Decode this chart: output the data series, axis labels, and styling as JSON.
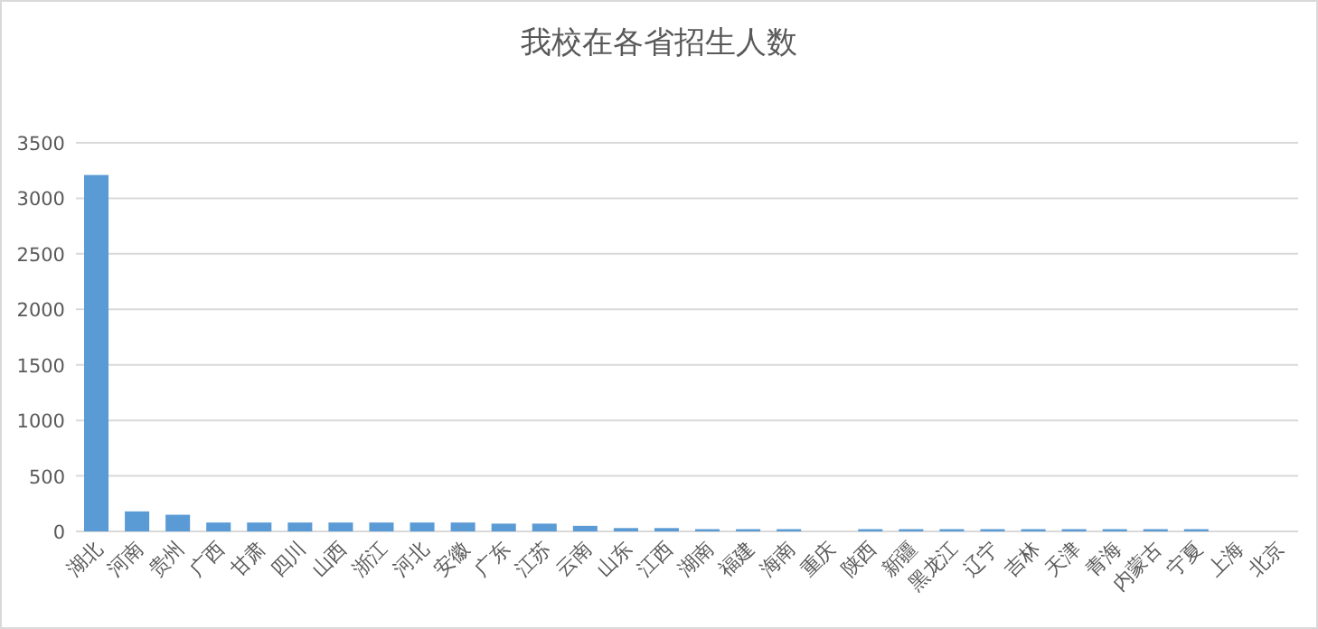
{
  "chart_data": {
    "type": "bar",
    "title": "我校在各省招生人数",
    "categories": [
      "湖北",
      "河南",
      "贵州",
      "广西",
      "甘肃",
      "四川",
      "山西",
      "浙江",
      "河北",
      "安徽",
      "广东",
      "江苏",
      "云南",
      "山东",
      "江西",
      "湖南",
      "福建",
      "海南",
      "重庆",
      "陕西",
      "新疆",
      "黑龙江",
      "辽宁",
      "吉林",
      "天津",
      "青海",
      "内蒙古",
      "宁夏",
      "上海",
      "北京"
    ],
    "values": [
      3210,
      180,
      150,
      80,
      80,
      80,
      80,
      80,
      80,
      80,
      70,
      70,
      50,
      30,
      30,
      20,
      20,
      20,
      0,
      20,
      20,
      20,
      20,
      20,
      20,
      20,
      20,
      20,
      0,
      0
    ],
    "color": "#5b9bd5",
    "ylim": [
      0,
      3500
    ],
    "yticks": [
      0,
      500,
      1000,
      1500,
      2000,
      2500,
      3000,
      3500
    ],
    "grid": "y"
  }
}
